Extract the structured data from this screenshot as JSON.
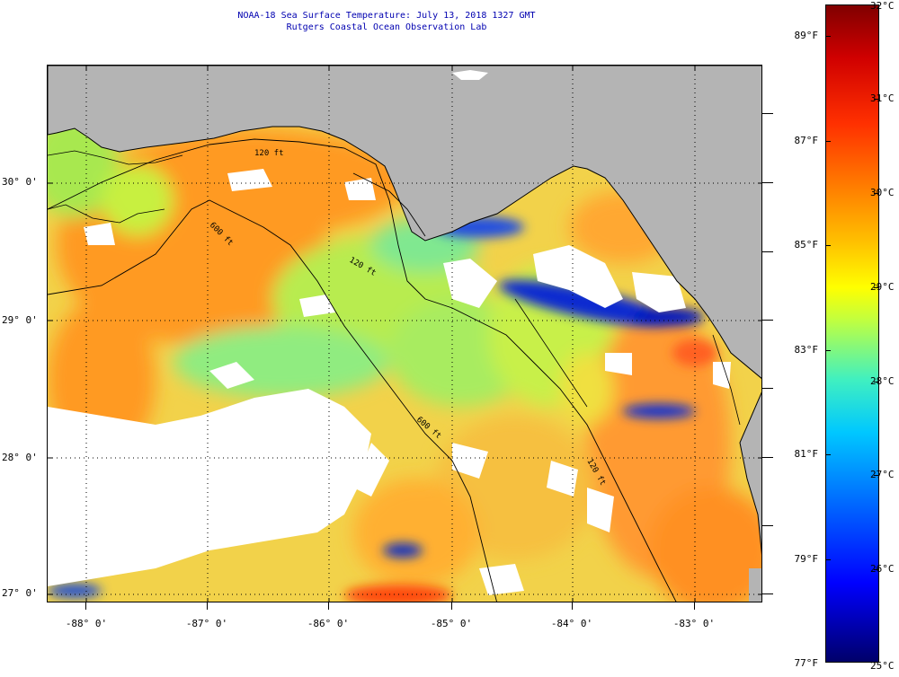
{
  "header": {
    "title_line_1": "NOAA-18 Sea Surface Temperature:  July 13, 2018 1327 GMT",
    "title_line_2": "Rutgers Coastal Ocean Observation Lab"
  },
  "map": {
    "longitude_labels": [
      "-88° 0'",
      "-87° 0'",
      "-86° 0'",
      "-85° 0'",
      "-84° 0'",
      "-83° 0'"
    ],
    "latitude_labels": [
      "30° 0'",
      "29° 0'",
      "28° 0'",
      "27° 0'"
    ],
    "contour_labels": [
      "120 ft",
      "600 ft",
      "600 ft",
      "120 ft",
      "120 ft"
    ],
    "colors": {
      "land": "#b4b4b4",
      "no_data": "#ffffff",
      "coastline": "#000000"
    }
  },
  "colorbar": {
    "fahrenheit_labels": [
      "89°F",
      "87°F",
      "85°F",
      "83°F",
      "81°F",
      "79°F",
      "77°F"
    ],
    "celsius_labels": [
      "32°C",
      "31°C",
      "30°C",
      "29°C",
      "28°C",
      "27°C",
      "26°C",
      "25°C"
    ]
  }
}
